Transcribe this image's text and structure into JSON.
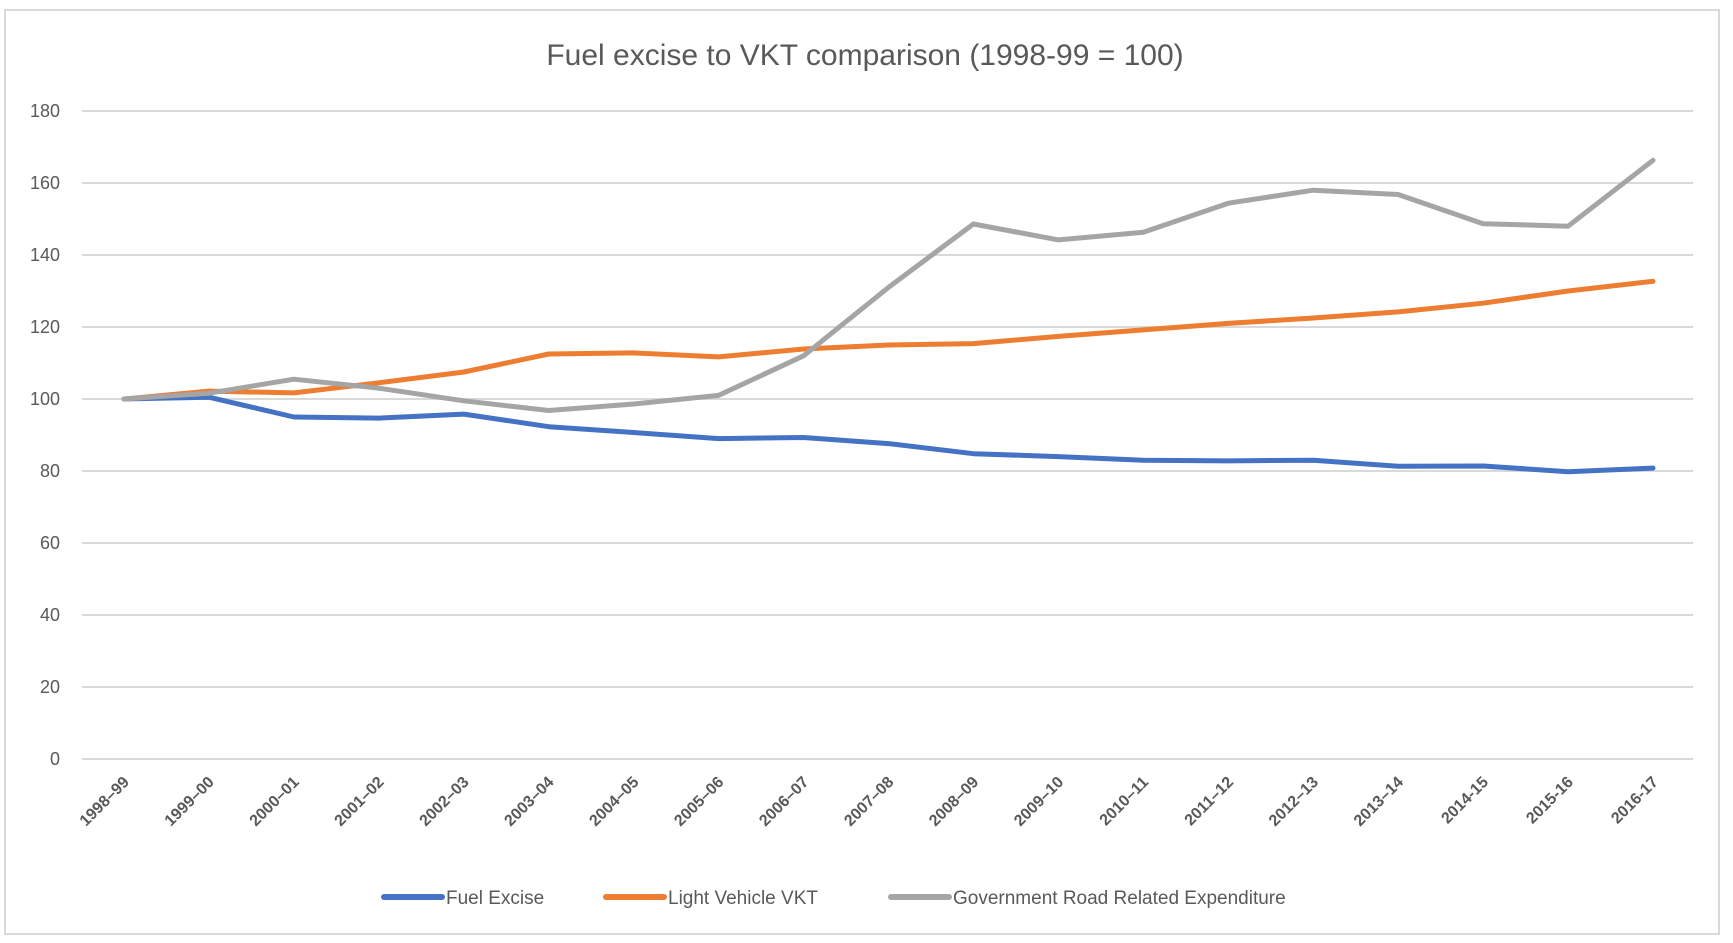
{
  "chart_data": {
    "type": "line",
    "title": "Fuel excise to VKT comparison (1998-99 = 100)",
    "xlabel": "",
    "ylabel": "",
    "ylim": [
      0,
      180
    ],
    "yticks": [
      "0",
      "20",
      "40",
      "60",
      "80",
      "100",
      "120",
      "140",
      "160",
      "180"
    ],
    "ytick_values": [
      0,
      20,
      40,
      60,
      80,
      100,
      120,
      140,
      160,
      180
    ],
    "grid": true,
    "legend_position": "bottom",
    "categories": [
      "1998–99",
      "1999–00",
      "2000–01",
      "2001–02",
      "2002–03",
      "2003–04",
      "2004–05",
      "2005–06",
      "2006–07",
      "2007–08",
      "2008–09",
      "2009–10",
      "2010–11",
      "2011–12",
      "2012–13",
      "2013–14",
      "2014-15",
      "2015-16",
      "2016-17"
    ],
    "series": [
      {
        "name": "Fuel Excise",
        "color": "#4472C4",
        "values": [
          100,
          100.5,
          95,
          94.7,
          95.8,
          92.3,
          90.7,
          89,
          89.3,
          87.6,
          84.8,
          84,
          83,
          82.8,
          83,
          81.3,
          81.4,
          79.8,
          80.8
        ]
      },
      {
        "name": "Light Vehicle VKT",
        "color": "#ED7D31",
        "values": [
          100,
          102.2,
          101.7,
          104.5,
          107.5,
          112.5,
          112.8,
          111.7,
          113.9,
          115,
          115.4,
          117.4,
          119.2,
          121,
          122.5,
          124.2,
          126.6,
          130,
          132.7
        ]
      },
      {
        "name": "Government Road Related Expenditure",
        "color": "#A5A5A5",
        "values": [
          100,
          101.6,
          105.5,
          103,
          99.5,
          96.8,
          98.6,
          101,
          112,
          131,
          148.6,
          144.2,
          146.3,
          154.4,
          158,
          156.8,
          148.7,
          148,
          166.3
        ]
      }
    ]
  }
}
